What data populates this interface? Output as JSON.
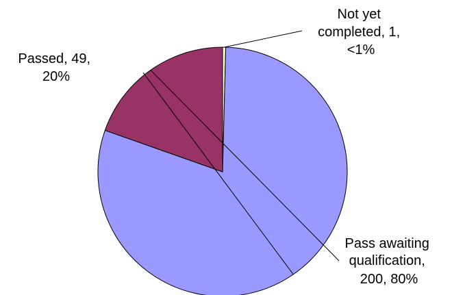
{
  "chart_data": {
    "type": "pie",
    "title": "",
    "slices": [
      {
        "name": "Not yet completed",
        "value": 1,
        "percent_label": "<1%",
        "color": "#FFFFCC",
        "label_lines": [
          "Not yet",
          "completed, 1,",
          "<1%"
        ]
      },
      {
        "name": "Pass awaiting qualification",
        "value": 200,
        "percent_label": "80%",
        "color": "#9999FF",
        "label_lines": [
          "Pass awaiting",
          "qualification,",
          "200, 80%"
        ]
      },
      {
        "name": "Passed",
        "value": 49,
        "percent_label": "20%",
        "color": "#993366",
        "label_lines": [
          "Passed, 49,",
          "20%"
        ]
      }
    ],
    "start_angle": "12 o'clock",
    "direction": "clockwise",
    "legend": "none"
  }
}
